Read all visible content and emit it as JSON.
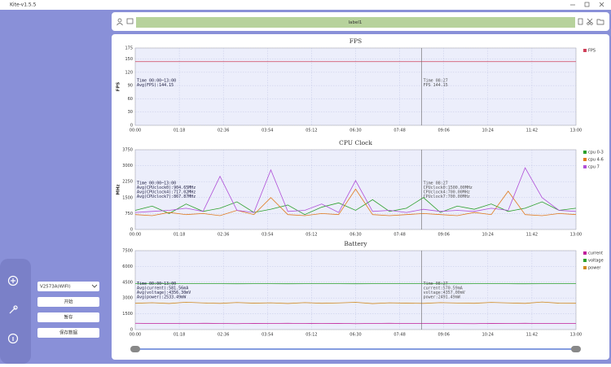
{
  "window": {
    "title": "Kite-v1.5.5"
  },
  "sidebar": {
    "device": "V2573A(WIFI)",
    "buttons": [
      "开始",
      "暂存",
      "保存数据"
    ]
  },
  "toolbar": {
    "label": "label1"
  },
  "chart_data": [
    {
      "type": "line",
      "title": "FPS",
      "y_label": "FPS",
      "x": [
        0,
        390,
        780
      ],
      "xlim": [
        0,
        780
      ],
      "xticks": [
        {
          "value": 0,
          "label": "00:00"
        },
        {
          "value": 78,
          "label": "01:18"
        },
        {
          "value": 156,
          "label": "02:36"
        },
        {
          "value": 234,
          "label": "03:54"
        },
        {
          "value": 312,
          "label": "05:12"
        },
        {
          "value": 390,
          "label": "06:30"
        },
        {
          "value": 468,
          "label": "07:48"
        },
        {
          "value": 546,
          "label": "09:06"
        },
        {
          "value": 624,
          "label": "10:24"
        },
        {
          "value": 702,
          "label": "11:42"
        },
        {
          "value": 780,
          "label": "13:00"
        }
      ],
      "ylim": [
        0,
        175
      ],
      "yticks": [
        0,
        30,
        60,
        90,
        120,
        150,
        175
      ],
      "grid": true,
      "legend": "right",
      "cursor_x": 507,
      "series": [
        {
          "name": "FPS",
          "color": "#d0405a",
          "values": [
            144.15,
            144.15,
            144.15
          ]
        }
      ],
      "annotations": [
        "Time 00:00~13:00",
        "Avg(FPS):144.15"
      ],
      "cursor_annotations": [
        "Time 08:27",
        "FPS 144.15"
      ]
    },
    {
      "type": "line",
      "title": "CPU Clock",
      "y_label": "MHz",
      "x": [
        0,
        30,
        60,
        90,
        120,
        150,
        180,
        210,
        240,
        270,
        300,
        330,
        360,
        390,
        420,
        450,
        480,
        510,
        540,
        570,
        600,
        630,
        660,
        690,
        720,
        750,
        780
      ],
      "xlim": [
        0,
        780
      ],
      "xticks": [
        {
          "value": 0,
          "label": "00:00"
        },
        {
          "value": 78,
          "label": "01:18"
        },
        {
          "value": 156,
          "label": "02:36"
        },
        {
          "value": 234,
          "label": "03:54"
        },
        {
          "value": 312,
          "label": "05:12"
        },
        {
          "value": 390,
          "label": "06:30"
        },
        {
          "value": 468,
          "label": "07:48"
        },
        {
          "value": 546,
          "label": "09:06"
        },
        {
          "value": 624,
          "label": "10:24"
        },
        {
          "value": 702,
          "label": "11:42"
        },
        {
          "value": 780,
          "label": "13:00"
        }
      ],
      "ylim": [
        0,
        3750
      ],
      "yticks": [
        0,
        750,
        1500,
        2250,
        3000,
        3750
      ],
      "grid": true,
      "legend": "right",
      "cursor_x": 507,
      "series": [
        {
          "name": "cpu 0-3",
          "color": "#2ca02c",
          "values": [
            900,
            1100,
            750,
            1200,
            850,
            1000,
            1300,
            800,
            950,
            1150,
            700,
            1050,
            1250,
            900,
            1400,
            850,
            1000,
            1500,
            800,
            1100,
            950,
            1200,
            850,
            1000,
            1300,
            900,
            1000
          ]
        },
        {
          "name": "cpu 4-6",
          "color": "#e07b20",
          "values": [
            700,
            650,
            800,
            700,
            750,
            650,
            900,
            700,
            1500,
            700,
            650,
            750,
            700,
            1900,
            700,
            650,
            700,
            750,
            700,
            650,
            800,
            700,
            1800,
            700,
            650,
            750,
            700
          ]
        },
        {
          "name": "cpu 7",
          "color": "#b050d8",
          "values": [
            800,
            850,
            900,
            1000,
            850,
            2500,
            900,
            800,
            2800,
            850,
            900,
            1200,
            800,
            2300,
            850,
            900,
            800,
            950,
            850,
            900,
            850,
            1000,
            900,
            2900,
            1500,
            900,
            850
          ]
        }
      ],
      "annotations": [
        "Time 00:00~13:00",
        "Avg(CPUclock0):904.65MHz",
        "Avg(CPUclock4):717.02MHz",
        "Avg(CPUclock7):867.87MHz"
      ],
      "cursor_annotations": [
        "Time 08:27",
        "CPUclock0:1500.00MHz",
        "CPUclock4:700.00MHz",
        "CPUclock7:700.00MHz"
      ]
    },
    {
      "type": "line",
      "title": "Battery",
      "y_label": "",
      "x": [
        0,
        30,
        60,
        90,
        120,
        150,
        180,
        210,
        240,
        270,
        300,
        330,
        360,
        390,
        420,
        450,
        480,
        510,
        540,
        570,
        600,
        630,
        660,
        690,
        720,
        750,
        780
      ],
      "xlim": [
        0,
        780
      ],
      "xticks": [
        {
          "value": 0,
          "label": "00:00"
        },
        {
          "value": 78,
          "label": "01:18"
        },
        {
          "value": 156,
          "label": "02:36"
        },
        {
          "value": 234,
          "label": "03:54"
        },
        {
          "value": 312,
          "label": "05:12"
        },
        {
          "value": 390,
          "label": "06:30"
        },
        {
          "value": 468,
          "label": "07:48"
        },
        {
          "value": 546,
          "label": "09:06"
        },
        {
          "value": 624,
          "label": "10:24"
        },
        {
          "value": 702,
          "label": "11:42"
        },
        {
          "value": 780,
          "label": "13:00"
        }
      ],
      "ylim": [
        0,
        7500
      ],
      "yticks": [
        0,
        1500,
        3000,
        4500,
        6000,
        7500
      ],
      "grid": true,
      "legend": "right",
      "cursor_x": 507,
      "series": [
        {
          "name": "current",
          "color": "#c0209a",
          "values": [
            600,
            580,
            590,
            570,
            600,
            580,
            560,
            590,
            580,
            600,
            570,
            580,
            590,
            560,
            580,
            600,
            570,
            590,
            580,
            570,
            560,
            590,
            580,
            600,
            570,
            580,
            590
          ]
        },
        {
          "name": "voltage",
          "color": "#2ca02c",
          "values": [
            4360,
            4358,
            4357,
            4356,
            4357,
            4356,
            4355,
            4357,
            4356,
            4355,
            4356,
            4357,
            4356,
            4355,
            4356,
            4357,
            4356,
            4357,
            4356,
            4355,
            4356,
            4357,
            4356,
            4355,
            4356,
            4357,
            4356
          ]
        },
        {
          "name": "power",
          "color": "#d08a20",
          "values": [
            2500,
            2550,
            2480,
            2600,
            2530,
            2490,
            2570,
            2510,
            2540,
            2480,
            2560,
            2500,
            2530,
            2590,
            2470,
            2540,
            2510,
            2490,
            2560,
            2520,
            2500,
            2580,
            2530,
            2490,
            2620,
            2510,
            2500
          ]
        }
      ],
      "annotations": [
        "Time 00:00~13:00",
        "Avg(current):581.56mA",
        "Avg(voltage):4356.30mV",
        "Avg(power):2533.49mW"
      ],
      "cursor_annotations": [
        "Time 08:27",
        "current:570.59mA",
        "voltage:4357.00mV",
        "power:2491.49mW"
      ]
    }
  ]
}
